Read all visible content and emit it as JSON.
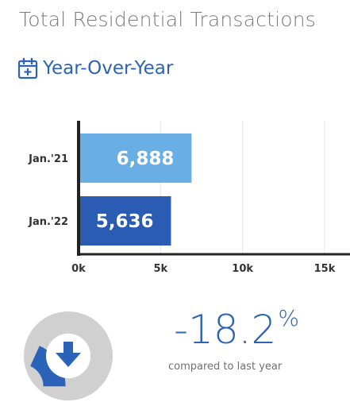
{
  "header": {
    "title": "Total Residential Transactions",
    "subtitle": "Year-Over-Year",
    "subtitle_icon": "calendar-plus-icon"
  },
  "chart_data": {
    "type": "bar",
    "orientation": "horizontal",
    "categories": [
      "Jan.'21",
      "Jan.'22"
    ],
    "values": [
      6888,
      5636
    ],
    "value_labels": [
      "6,888",
      "5,636"
    ],
    "bar_colors": [
      "#6aaee6",
      "#2b5cb4"
    ],
    "xlim": [
      0,
      15000
    ],
    "x_ticks": [
      0,
      5000,
      10000,
      15000
    ],
    "x_tick_labels": [
      "0k",
      "5k",
      "10k",
      "15k"
    ],
    "grid": true,
    "legend": "none"
  },
  "stat": {
    "value": "-18.2",
    "unit": "%",
    "caption": "compared to last year",
    "direction_icon": "arrow-down-icon",
    "change_fraction": 0.182,
    "accent_color": "#2b63b8",
    "track_color": "#d0d0d0"
  }
}
